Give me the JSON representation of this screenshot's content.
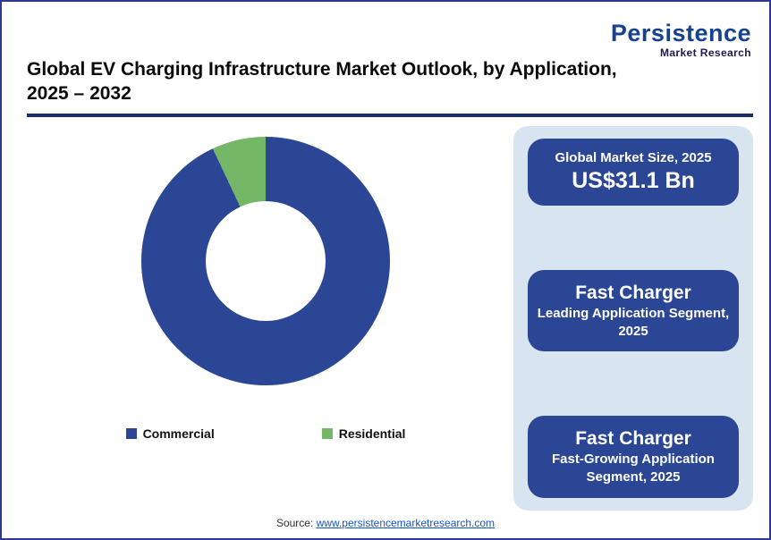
{
  "logo": {
    "line1": "Persistence",
    "line2": "Market Research"
  },
  "header": {
    "title_line1": "Global EV Charging Infrastructure Market Outlook, by Application,",
    "title_line2": "2025 – 2032"
  },
  "chart_data": {
    "type": "pie",
    "subtype": "donut",
    "title": "Global EV Charging Infrastructure Market Outlook, by Application, 2025 – 2032",
    "categories": [
      "Commercial",
      "Residential"
    ],
    "values": [
      93,
      7
    ],
    "colors": [
      "#2B4694",
      "#74B767"
    ],
    "legend_position": "bottom"
  },
  "sidebar": {
    "background": "#D8E5F1",
    "box_color": "#2B4694",
    "boxes": [
      {
        "line1": "Global Market Size, 2025",
        "line2": "US$31.1 Bn"
      },
      {
        "line1": "Fast Charger",
        "line2": "Leading Application Segment, 2025"
      },
      {
        "line1": "Fast Charger",
        "line2": "Fast-Growing Application Segment, 2025"
      }
    ]
  },
  "footer": {
    "source_label": "Source:",
    "source_link": "www.persistencemarketresearch.com"
  }
}
